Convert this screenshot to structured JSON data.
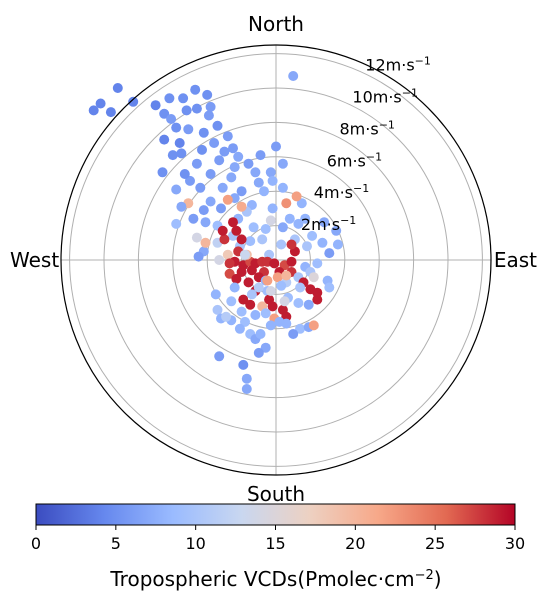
{
  "chart_data": {
    "type": "scatter",
    "coordinate_system": "polar",
    "directions": {
      "north": "North",
      "east": "East",
      "south": "South",
      "west": "West"
    },
    "radial_unit": "m·s",
    "radial_unit_exponent": "−1",
    "radial_ticks": [
      2,
      4,
      6,
      8,
      10,
      12
    ],
    "radial_tick_labels": [
      "2m·s",
      "4m·s",
      "6m·s",
      "8m·s",
      "10m·s",
      "12m·s"
    ],
    "rlim": [
      0,
      12.5
    ],
    "grid": true,
    "colorbar": {
      "cmap": "coolwarm",
      "colors": [
        "#3b4cc0",
        "#6688ee",
        "#9abbff",
        "#c9d7f0",
        "#edd1c2",
        "#f7a889",
        "#e26952",
        "#b40426"
      ],
      "range": [
        0,
        30
      ],
      "ticks": [
        0,
        5,
        10,
        15,
        20,
        25,
        30
      ],
      "tick_labels": [
        "0",
        "5",
        "10",
        "15",
        "20",
        "25",
        "30"
      ],
      "label": "Tropospheric VCDs(Pmolec·cm",
      "label_exponent": "−2"
    },
    "point_encoding": "u = eastward wind component, v = northward wind component (m/s); c = Tropospheric VCD (Pmolec/cm²)",
    "points": [
      {
        "u": -9.2,
        "v": 10.0,
        "c": 4
      },
      {
        "u": -10.2,
        "v": 9.1,
        "c": 4
      },
      {
        "u": -10.6,
        "v": 8.7,
        "c": 4
      },
      {
        "u": -9.6,
        "v": 8.6,
        "c": 4
      },
      {
        "u": -8.3,
        "v": 9.2,
        "c": 4
      },
      {
        "u": -7.0,
        "v": 9.0,
        "c": 4
      },
      {
        "u": -6.2,
        "v": 9.4,
        "c": 5
      },
      {
        "u": -5.4,
        "v": 9.4,
        "c": 5
      },
      {
        "u": -5.2,
        "v": 8.7,
        "c": 5
      },
      {
        "u": -6.5,
        "v": 8.5,
        "c": 5
      },
      {
        "u": -5.8,
        "v": 7.7,
        "c": 5
      },
      {
        "u": -6.5,
        "v": 7.0,
        "c": 4
      },
      {
        "u": -5.6,
        "v": 6.8,
        "c": 4
      },
      {
        "u": -5.5,
        "v": 6.2,
        "c": 5
      },
      {
        "u": -4.6,
        "v": 8.8,
        "c": 5
      },
      {
        "u": -3.9,
        "v": 8.4,
        "c": 6
      },
      {
        "u": -4.2,
        "v": 7.4,
        "c": 5
      },
      {
        "u": -3.4,
        "v": 7.8,
        "c": 5
      },
      {
        "u": -3.6,
        "v": 6.8,
        "c": 6
      },
      {
        "u": -2.8,
        "v": 7.2,
        "c": 6
      },
      {
        "u": -3.3,
        "v": 5.8,
        "c": 6
      },
      {
        "u": -2.2,
        "v": 6.0,
        "c": 7
      },
      {
        "u": -1.6,
        "v": 5.6,
        "c": 6
      },
      {
        "u": -0.9,
        "v": 6.1,
        "c": 6
      },
      {
        "u": 0.0,
        "v": 6.6,
        "c": 6
      },
      {
        "u": -0.3,
        "v": 5.1,
        "c": 7
      },
      {
        "u": -1.0,
        "v": 4.5,
        "c": 7
      },
      {
        "u": -2.6,
        "v": 4.8,
        "c": 7
      },
      {
        "u": -3.8,
        "v": 5.0,
        "c": 6
      },
      {
        "u": -4.6,
        "v": 5.6,
        "c": 6
      },
      {
        "u": -4.4,
        "v": 4.2,
        "c": 6
      },
      {
        "u": -2.0,
        "v": 4.0,
        "c": 6
      },
      {
        "u": -0.7,
        "v": 4.0,
        "c": 8
      },
      {
        "u": 0.4,
        "v": 4.2,
        "c": 8
      },
      {
        "u": 1.0,
        "v": 10.7,
        "c": 7
      },
      {
        "u": -5.8,
        "v": 4.1,
        "c": 7
      },
      {
        "u": -5.1,
        "v": 3.3,
        "c": 20
      },
      {
        "u": -3.2,
        "v": 3.0,
        "c": 6
      },
      {
        "u": -2.4,
        "v": 3.6,
        "c": 7
      },
      {
        "u": -1.4,
        "v": 3.2,
        "c": 8
      },
      {
        "u": -0.2,
        "v": 3.0,
        "c": 8
      },
      {
        "u": 0.8,
        "v": 2.4,
        "c": 8
      },
      {
        "u": 1.3,
        "v": 2.1,
        "c": 8
      },
      {
        "u": 1.7,
        "v": 2.4,
        "c": 8
      },
      {
        "u": -2.2,
        "v": 2.4,
        "c": 8
      },
      {
        "u": -3.4,
        "v": 2.0,
        "c": 9
      },
      {
        "u": -4.1,
        "v": 2.2,
        "c": 7
      },
      {
        "u": -1.3,
        "v": 1.9,
        "c": 9
      },
      {
        "u": -0.6,
        "v": 1.8,
        "c": 9
      },
      {
        "u": 0.4,
        "v": 1.9,
        "c": 7
      },
      {
        "u": 1.1,
        "v": 1.2,
        "c": 10
      },
      {
        "u": -2.5,
        "v": 1.4,
        "c": 10
      },
      {
        "u": -3.4,
        "v": 1.0,
        "c": 12
      },
      {
        "u": -2.1,
        "v": 0.8,
        "c": 10
      },
      {
        "u": -1.5,
        "v": 1.1,
        "c": 9
      },
      {
        "u": -0.8,
        "v": 1.2,
        "c": 10
      },
      {
        "u": 0.3,
        "v": 0.9,
        "c": 10
      },
      {
        "u": 1.8,
        "v": 0.8,
        "c": 10
      },
      {
        "u": 2.1,
        "v": 1.4,
        "c": 9
      },
      {
        "u": 2.7,
        "v": 1.0,
        "c": 8
      },
      {
        "u": 3.1,
        "v": 0.4,
        "c": 6
      },
      {
        "u": 2.4,
        "v": -0.2,
        "c": 9
      },
      {
        "u": -4.2,
        "v": 0.5,
        "c": 7
      },
      {
        "u": -4.5,
        "v": 0.2,
        "c": 6
      },
      {
        "u": -3.3,
        "v": 0.0,
        "c": 14
      },
      {
        "u": -2.8,
        "v": 0.3,
        "c": 18
      },
      {
        "u": -0.4,
        "v": 0.3,
        "c": 10
      },
      {
        "u": -2.5,
        "v": 2.2,
        "c": 29
      },
      {
        "u": -2.3,
        "v": 1.7,
        "c": 29
      },
      {
        "u": -2.0,
        "v": 1.2,
        "c": 29
      },
      {
        "u": -2.2,
        "v": 0.5,
        "c": 28
      },
      {
        "u": -2.4,
        "v": -0.1,
        "c": 29
      },
      {
        "u": -2.7,
        "v": -0.2,
        "c": 28
      },
      {
        "u": -1.9,
        "v": -0.3,
        "c": 29
      },
      {
        "u": -1.5,
        "v": -0.1,
        "c": 27
      },
      {
        "u": -1.2,
        "v": -0.2,
        "c": 29
      },
      {
        "u": -0.8,
        "v": -0.1,
        "c": 28
      },
      {
        "u": -0.5,
        "v": -0.1,
        "c": 28
      },
      {
        "u": -0.1,
        "v": -0.2,
        "c": 29
      },
      {
        "u": 0.5,
        "v": -0.3,
        "c": 27
      },
      {
        "u": 0.9,
        "v": -0.1,
        "c": 29
      },
      {
        "u": 1.1,
        "v": 0.5,
        "c": 29
      },
      {
        "u": 0.9,
        "v": 0.9,
        "c": 28
      },
      {
        "u": -2.0,
        "v": -0.7,
        "c": 29
      },
      {
        "u": -1.4,
        "v": -0.6,
        "c": 29
      },
      {
        "u": -0.7,
        "v": -0.7,
        "c": 28
      },
      {
        "u": 0.2,
        "v": -0.7,
        "c": 29
      },
      {
        "u": 0.9,
        "v": -0.7,
        "c": 28
      },
      {
        "u": -2.7,
        "v": -0.8,
        "c": 27
      },
      {
        "u": -1.0,
        "v": -1.0,
        "c": 29
      },
      {
        "u": 0.1,
        "v": -1.0,
        "c": 22
      },
      {
        "u": 1.3,
        "v": -1.0,
        "c": 10
      },
      {
        "u": 1.7,
        "v": -0.4,
        "c": 8
      },
      {
        "u": 2.0,
        "v": -0.7,
        "c": 10
      },
      {
        "u": 2.2,
        "v": -1.0,
        "c": 15
      },
      {
        "u": -2.3,
        "v": -1.1,
        "c": 29
      },
      {
        "u": -1.6,
        "v": -1.3,
        "c": 29
      },
      {
        "u": -0.6,
        "v": -1.2,
        "c": 8
      },
      {
        "u": 0.6,
        "v": -1.3,
        "c": 11
      },
      {
        "u": 1.6,
        "v": -1.3,
        "c": 29
      },
      {
        "u": 1.4,
        "v": -1.6,
        "c": 10
      },
      {
        "u": -2.4,
        "v": -1.6,
        "c": 8
      },
      {
        "u": -1.2,
        "v": -1.8,
        "c": 29
      },
      {
        "u": -0.5,
        "v": -1.8,
        "c": 9
      },
      {
        "u": 0.3,
        "v": -1.5,
        "c": 9
      },
      {
        "u": 2.0,
        "v": -1.7,
        "c": 29
      },
      {
        "u": 2.4,
        "v": -1.9,
        "c": 29
      },
      {
        "u": 3.0,
        "v": -1.2,
        "c": 8
      },
      {
        "u": 3.1,
        "v": -1.6,
        "c": 9
      },
      {
        "u": 2.4,
        "v": -2.3,
        "c": 29
      },
      {
        "u": 1.9,
        "v": -2.6,
        "c": 7
      },
      {
        "u": 1.3,
        "v": -2.5,
        "c": 9
      },
      {
        "u": 0.7,
        "v": -2.2,
        "c": 9
      },
      {
        "u": -0.4,
        "v": -2.3,
        "c": 29
      },
      {
        "u": -1.4,
        "v": -2.0,
        "c": 10
      },
      {
        "u": -1.9,
        "v": -2.3,
        "c": 29
      },
      {
        "u": -2.6,
        "v": -2.4,
        "c": 9
      },
      {
        "u": -3.5,
        "v": -2.0,
        "c": 8
      },
      {
        "u": -3.4,
        "v": -2.9,
        "c": 10
      },
      {
        "u": -1.5,
        "v": -2.6,
        "c": 29
      },
      {
        "u": -0.8,
        "v": -2.7,
        "c": 20
      },
      {
        "u": -0.2,
        "v": -2.7,
        "c": 29
      },
      {
        "u": 0.4,
        "v": -2.9,
        "c": 29
      },
      {
        "u": 0.6,
        "v": -3.3,
        "c": 29
      },
      {
        "u": -0.1,
        "v": -3.4,
        "c": 22
      },
      {
        "u": -0.6,
        "v": -3.1,
        "c": 9
      },
      {
        "u": -1.2,
        "v": -3.2,
        "c": 8
      },
      {
        "u": -2.0,
        "v": -3.0,
        "c": 9
      },
      {
        "u": -3.2,
        "v": -3.4,
        "c": 8
      },
      {
        "u": -2.6,
        "v": -3.5,
        "c": 8
      },
      {
        "u": -2.9,
        "v": -3.3,
        "c": 11
      },
      {
        "u": -1.8,
        "v": -3.6,
        "c": 9
      },
      {
        "u": -0.3,
        "v": -3.8,
        "c": 8
      },
      {
        "u": 0.2,
        "v": -3.6,
        "c": 8
      },
      {
        "u": 0.6,
        "v": -3.7,
        "c": 8
      },
      {
        "u": -2.1,
        "v": -4.0,
        "c": 8
      },
      {
        "u": -1.5,
        "v": -4.3,
        "c": 9
      },
      {
        "u": 1.4,
        "v": -4.0,
        "c": 9
      },
      {
        "u": 1.9,
        "v": -3.9,
        "c": 7
      },
      {
        "u": 2.2,
        "v": -3.8,
        "c": 22
      },
      {
        "u": 1.0,
        "v": -4.3,
        "c": 6
      },
      {
        "u": -1.2,
        "v": -4.6,
        "c": 7
      },
      {
        "u": -0.9,
        "v": -4.3,
        "c": 8
      },
      {
        "u": -0.6,
        "v": -5.1,
        "c": 7
      },
      {
        "u": -1.0,
        "v": -5.4,
        "c": 6
      },
      {
        "u": -3.3,
        "v": -5.6,
        "c": 6
      },
      {
        "u": -1.9,
        "v": -6.1,
        "c": 5
      },
      {
        "u": -1.7,
        "v": -6.9,
        "c": 7
      },
      {
        "u": -1.7,
        "v": -7.5,
        "c": 7
      },
      {
        "u": 2.8,
        "v": 2.2,
        "c": 7
      },
      {
        "u": 3.5,
        "v": 1.7,
        "c": 7
      },
      {
        "u": 3.6,
        "v": 0.9,
        "c": 8
      },
      {
        "u": 1.5,
        "v": 3.3,
        "c": 8
      },
      {
        "u": 0.6,
        "v": 3.3,
        "c": 23
      },
      {
        "u": 1.2,
        "v": 3.7,
        "c": 22
      },
      {
        "u": -0.3,
        "v": 2.3,
        "c": 14
      },
      {
        "u": -1.7,
        "v": 2.8,
        "c": 10
      },
      {
        "u": -2.8,
        "v": 3.5,
        "c": 22
      },
      {
        "u": -2.0,
        "v": 3.1,
        "c": 21
      },
      {
        "u": -4.6,
        "v": 1.3,
        "c": 14
      },
      {
        "u": -4.1,
        "v": 1.0,
        "c": 20
      },
      {
        "u": -1.7,
        "v": 0.3,
        "c": 19
      },
      {
        "u": 0.6,
        "v": -0.9,
        "c": 20
      },
      {
        "u": -0.5,
        "v": -1.2,
        "c": 22
      },
      {
        "u": -0.3,
        "v": -1.8,
        "c": 14
      },
      {
        "u": -1.0,
        "v": -1.6,
        "c": 11
      },
      {
        "u": 0.5,
        "v": -2.4,
        "c": 14
      },
      {
        "u": -1.8,
        "v": 0.3,
        "c": 13
      },
      {
        "u": -3.1,
        "v": 4.2,
        "c": 7
      },
      {
        "u": -2.5,
        "v": 6.5,
        "c": 6
      },
      {
        "u": -5.0,
        "v": 4.6,
        "c": 6
      },
      {
        "u": -6.6,
        "v": 5.1,
        "c": 5
      },
      {
        "u": -4.8,
        "v": 2.4,
        "c": 6
      },
      {
        "u": -5.8,
        "v": 2.1,
        "c": 9
      },
      {
        "u": -4.3,
        "v": 6.4,
        "c": 5
      },
      {
        "u": -3.8,
        "v": 3.4,
        "c": 7
      },
      {
        "u": -1.2,
        "v": 5.1,
        "c": 7
      },
      {
        "u": 0.4,
        "v": 5.6,
        "c": 7
      },
      {
        "u": -0.2,
        "v": 4.6,
        "c": 8
      },
      {
        "u": -2.4,
        "v": 5.4,
        "c": 7
      },
      {
        "u": -3.0,
        "v": 6.3,
        "c": 6
      },
      {
        "u": -5.1,
        "v": 7.6,
        "c": 6
      },
      {
        "u": -5.3,
        "v": 5.0,
        "c": 5
      },
      {
        "u": -6.0,
        "v": 6.1,
        "c": 5
      },
      {
        "u": -4.0,
        "v": 9.6,
        "c": 5
      },
      {
        "u": -4.7,
        "v": 9.9,
        "c": 5
      },
      {
        "u": -3.8,
        "v": 8.9,
        "c": 6
      },
      {
        "u": -6.1,
        "v": 8.2,
        "c": 6
      },
      {
        "u": -4.2,
        "v": 2.9,
        "c": 6
      },
      {
        "u": -5.5,
        "v": 3.1,
        "c": 7
      },
      {
        "u": -3.0,
        "v": 1.2,
        "c": 28
      },
      {
        "u": -3.1,
        "v": 1.7,
        "c": 29
      }
    ]
  }
}
